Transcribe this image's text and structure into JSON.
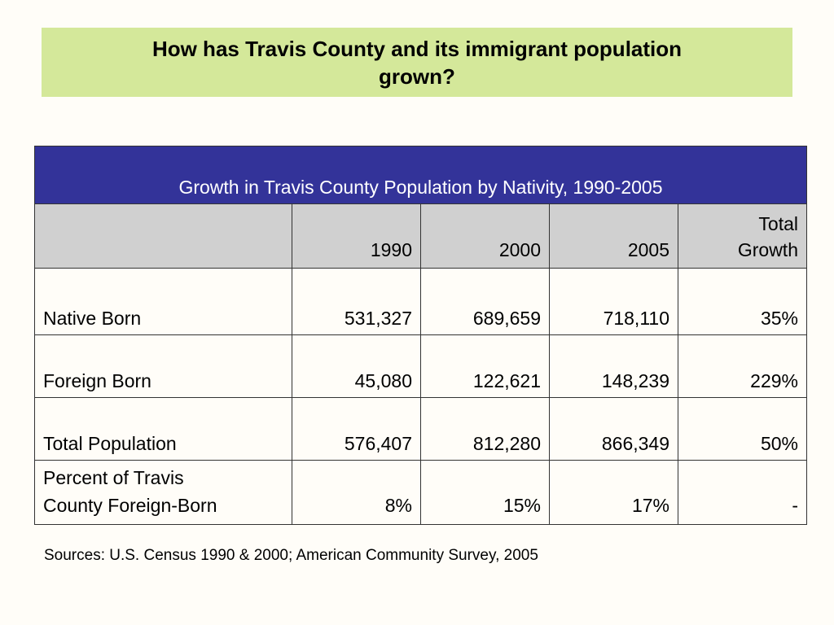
{
  "title": {
    "line1": "How has Travis County and its immigrant population",
    "line2": "grown?"
  },
  "table": {
    "caption": "Growth in Travis County Population by Nativity, 1990-2005",
    "headers": {
      "blank": "",
      "y1990": "1990",
      "y2000": "2000",
      "y2005": "2005",
      "growth_line1": "Total",
      "growth_line2": "Growth"
    },
    "rows": [
      {
        "label": "Native Born",
        "v1990": "531,327",
        "v2000": "689,659",
        "v2005": "718,110",
        "growth": "35%"
      },
      {
        "label": "Foreign Born",
        "v1990": "45,080",
        "v2000": "122,621",
        "v2005": "148,239",
        "growth": "229%"
      },
      {
        "label": "Total Population",
        "v1990": "576,407",
        "v2000": "812,280",
        "v2005": "866,349",
        "growth": "50%"
      },
      {
        "label_line1": "Percent of Travis",
        "label_line2": "County Foreign-Born",
        "v1990": "8%",
        "v2000": "15%",
        "v2005": "17%",
        "growth": "-"
      }
    ]
  },
  "sources": "Sources: U.S. Census 1990 & 2000; American Community Survey, 2005",
  "colors": {
    "title_bg": "#D4E89A",
    "caption_bg": "#333399",
    "header_bg": "#D0D0D0",
    "page_bg": "#FFFDF8"
  }
}
